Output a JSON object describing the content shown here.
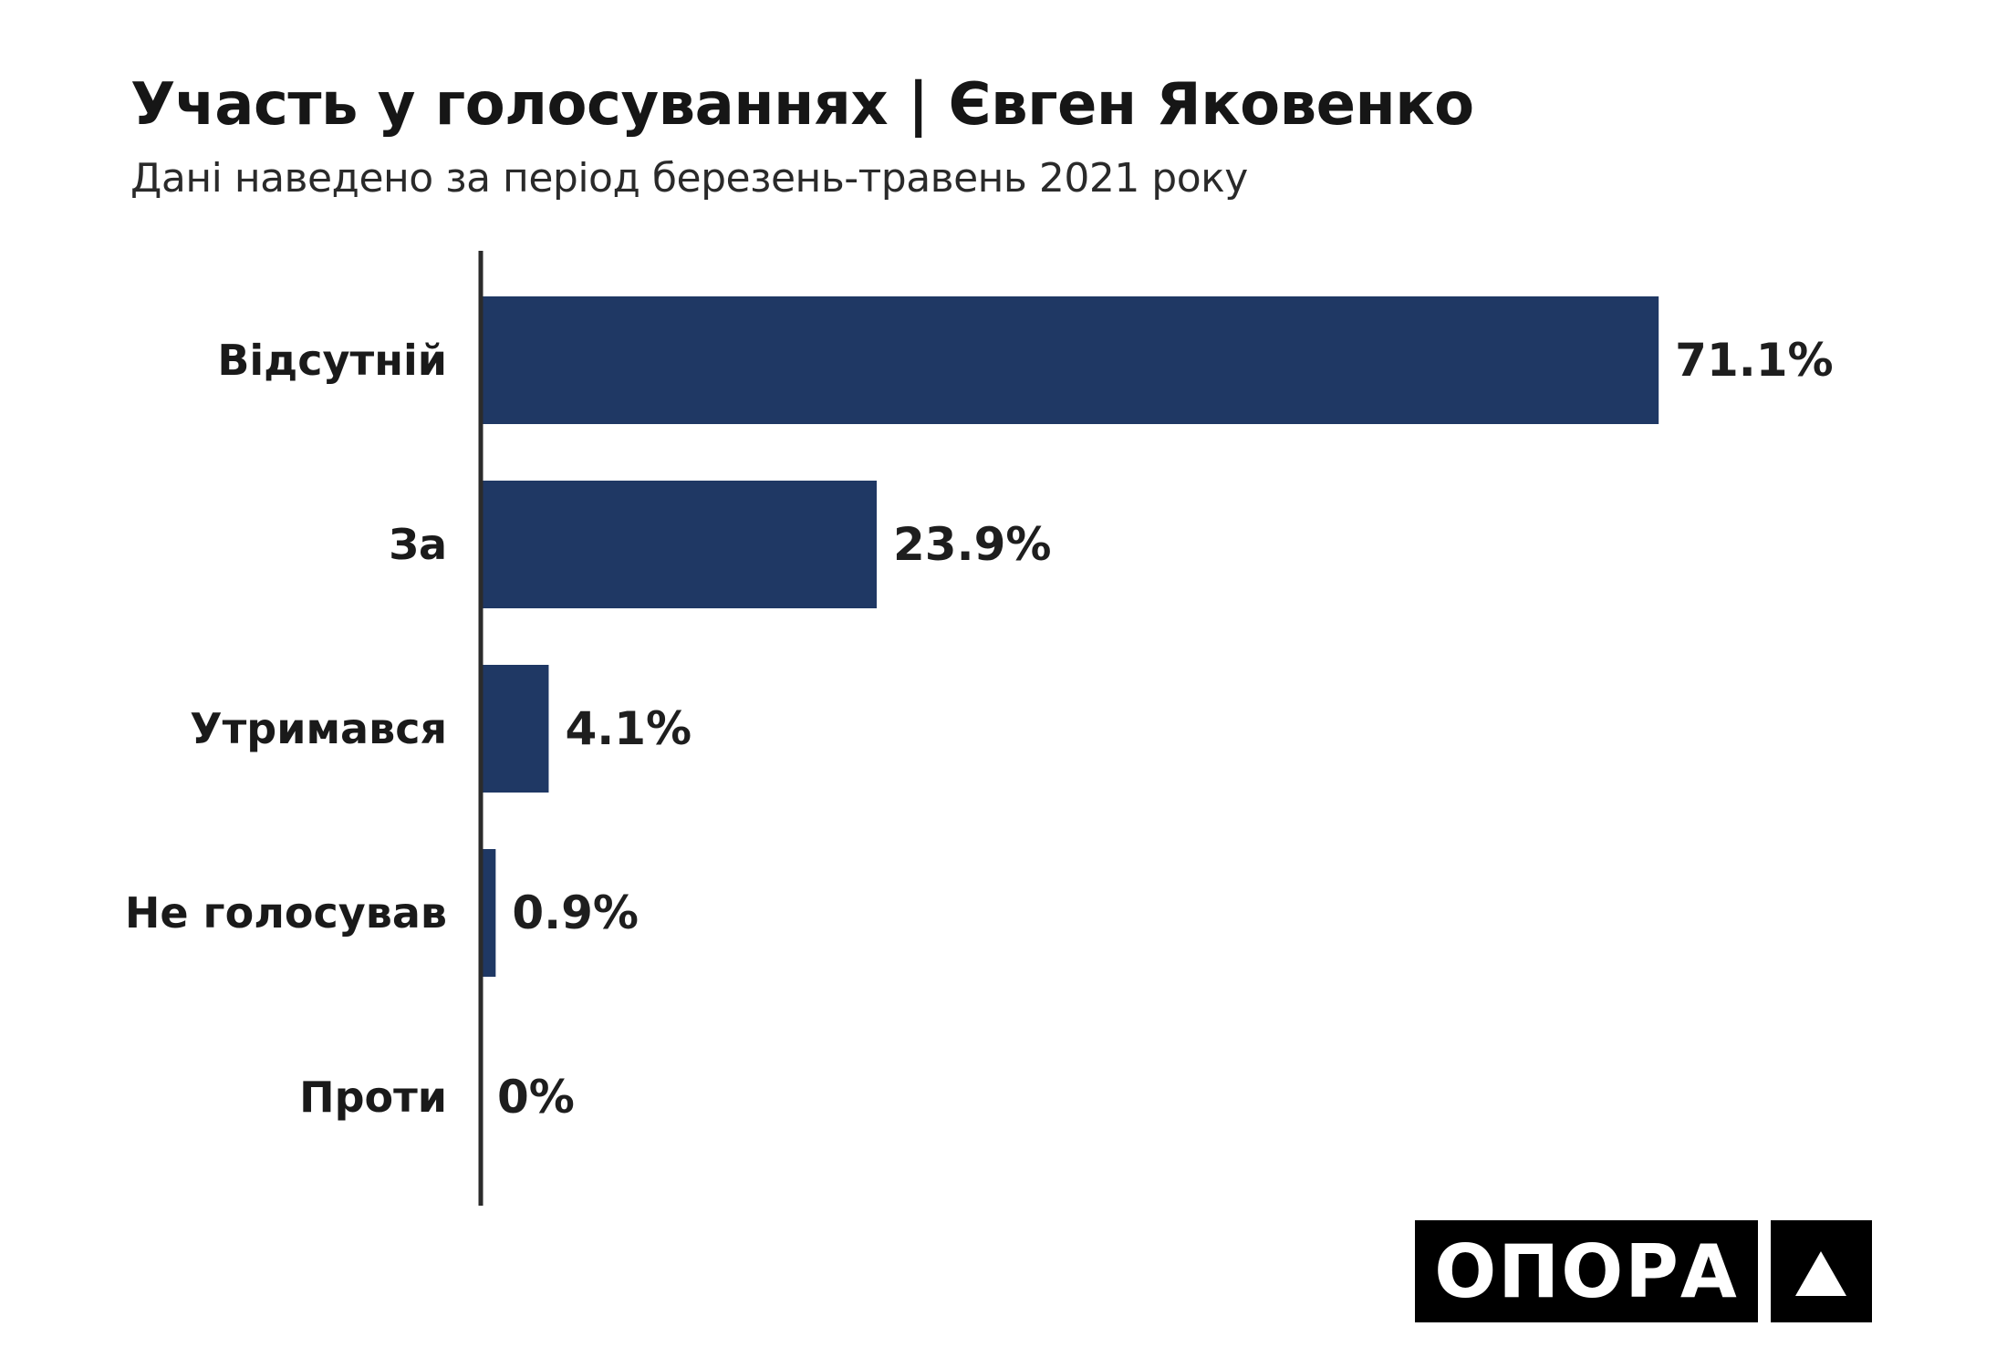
{
  "header": {
    "title": "Участь у голосуваннях | Євген Яковенко",
    "subtitle": "Дані наведено за період березень-травень 2021 року"
  },
  "chart_data": {
    "type": "bar",
    "orientation": "horizontal",
    "categories": [
      "Відсутній",
      "За",
      "Утримався",
      "Не голосував",
      "Проти"
    ],
    "values": [
      71.1,
      23.9,
      4.1,
      0.9,
      0
    ],
    "value_labels": [
      "71.1%",
      "23.9%",
      "4.1%",
      "0.9%",
      "0%"
    ],
    "unit": "%",
    "bar_color": "#1f3864",
    "grid": false,
    "legend": "none"
  },
  "branding": {
    "logo_text": "ОПОРА",
    "logo_mark_icon": "triangle-up-icon"
  }
}
